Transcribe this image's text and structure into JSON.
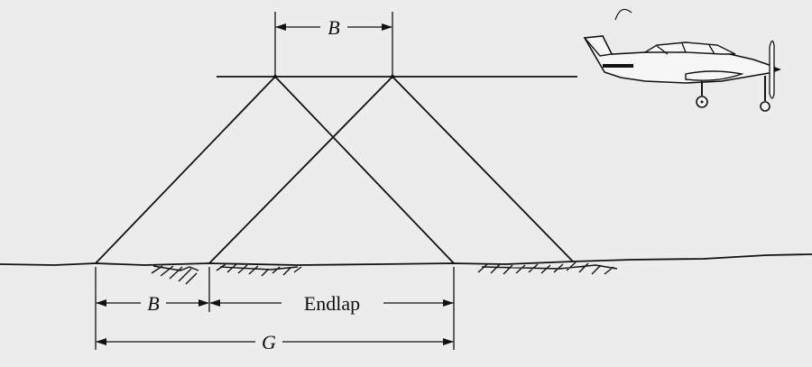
{
  "labels": {
    "base_top": "B",
    "base_bottom": "B",
    "endlap": "Endlap",
    "ground_coverage": "G"
  },
  "icons": {
    "aircraft": "airplane-icon"
  },
  "colors": {
    "ink": "#111111",
    "paper": "#ececec"
  }
}
